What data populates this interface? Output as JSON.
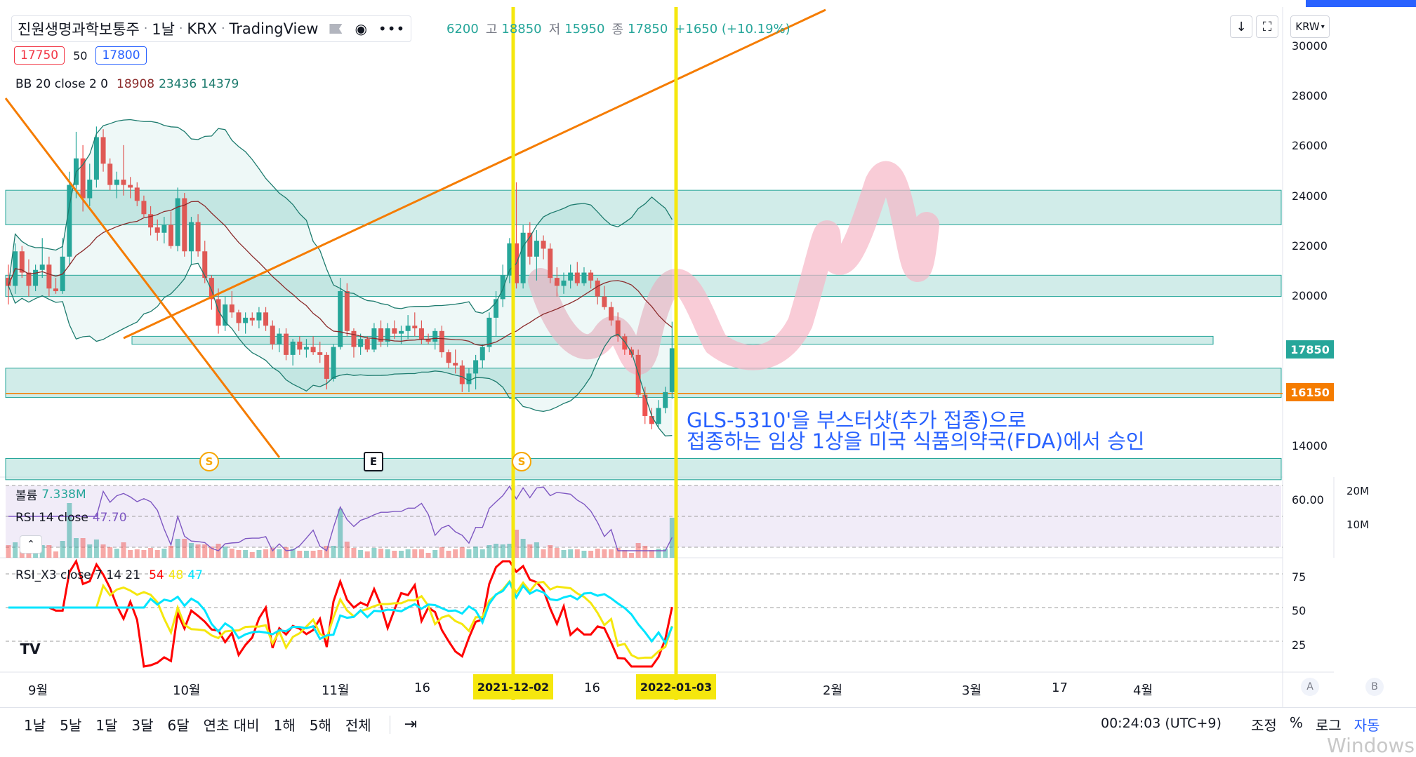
{
  "header": {
    "title": "진원생명과학보통주",
    "interval": "1날",
    "exchange": "KRX",
    "source": "TradingView",
    "ohlc_open_partial": "6200",
    "ohlc_high_label": "고",
    "ohlc_high": "18850",
    "ohlc_low_label": "저",
    "ohlc_low": "15950",
    "ohlc_close_label": "종",
    "ohlc_close": "17850",
    "change": "+1650 (+10.19%)",
    "bid": "17750",
    "spread": "50",
    "ask": "17800",
    "currency": "KRW"
  },
  "indicators": {
    "bb": {
      "label": "BB 20 close 2 0",
      "basis": "18908",
      "upper": "23436",
      "lower": "14379"
    },
    "volume": {
      "label": "볼륨",
      "value": "7.338M"
    },
    "rsi": {
      "label": "RSI 14 close",
      "value": "47.70"
    },
    "rsi_x3": {
      "label": "RSI_X3 close 7 14 21",
      "v1": "54",
      "v2": "48",
      "v3": "47"
    }
  },
  "price_axis": {
    "ticks": [
      "30000",
      "28000",
      "26000",
      "24000",
      "22000",
      "20000",
      "14000"
    ],
    "current_price": "17850",
    "line_price": "16150",
    "rsi_tick": "60.00",
    "volume_ticks": [
      "20M",
      "10M"
    ],
    "rsi_x3_ticks": [
      "75",
      "50",
      "25"
    ]
  },
  "time_axis": {
    "labels": [
      "9월",
      "10월",
      "11월",
      "16",
      "16",
      "2월",
      "3월",
      "17",
      "4월"
    ],
    "highlight_1": "2021-12-02",
    "highlight_2": "2022-01-03"
  },
  "markers": {
    "split": "S",
    "earnings": "E"
  },
  "annotation": {
    "line1": "GLS-5310'을 부스터샷(추가 접종)으로",
    "line2": "접종하는 임상 1상을 미국 식품의약국(FDA)에서 승인"
  },
  "bottom_bar": {
    "ranges": [
      "1날",
      "5날",
      "1달",
      "3달",
      "6달",
      "연초 대비",
      "1해",
      "5해",
      "전체"
    ],
    "clock": "00:24:03 (UTC+9)",
    "adjust": "조정",
    "percent": "%",
    "log": "로그",
    "auto": "자동",
    "scale_a": "A",
    "scale_b": "B"
  },
  "watermark": "Windows",
  "colors": {
    "up": "#26a69a",
    "down": "#ef5350",
    "zone_fill": "#b2dfdb",
    "trend": "#f57c00",
    "highlight": "#f5e70e",
    "annotation": "#2962ff"
  },
  "chart_data": {
    "type": "candlestick",
    "candles": [
      [
        20500,
        21000,
        19500,
        20200
      ],
      [
        20200,
        21800,
        19900,
        21500
      ],
      [
        21500,
        21700,
        20500,
        20700
      ],
      [
        20700,
        21200,
        19800,
        20200
      ],
      [
        20200,
        21000,
        20000,
        20800
      ],
      [
        20800,
        22000,
        20500,
        21000
      ],
      [
        21000,
        21300,
        19800,
        20100
      ],
      [
        20100,
        20500,
        19900,
        20000
      ],
      [
        20000,
        22000,
        19900,
        21300
      ],
      [
        21300,
        24500,
        21000,
        24000
      ],
      [
        24000,
        26000,
        23500,
        25000
      ],
      [
        25000,
        25500,
        23000,
        23500
      ],
      [
        23500,
        24800,
        23200,
        24200
      ],
      [
        24200,
        26200,
        23900,
        25800
      ],
      [
        25800,
        26100,
        24500,
        24800
      ],
      [
        24800,
        25000,
        23800,
        24000
      ],
      [
        24000,
        24500,
        23500,
        24200
      ],
      [
        24200,
        25500,
        23600,
        24000
      ],
      [
        24000,
        24300,
        23500,
        23900
      ],
      [
        23900,
        24100,
        23200,
        23400
      ],
      [
        23400,
        23600,
        22800,
        22900
      ],
      [
        22900,
        23200,
        22100,
        22400
      ],
      [
        22400,
        22700,
        21900,
        22200
      ],
      [
        22200,
        22800,
        21800,
        22500
      ],
      [
        22500,
        23000,
        21600,
        21700
      ],
      [
        21700,
        23900,
        21500,
        23500
      ],
      [
        23500,
        23700,
        21300,
        21500
      ],
      [
        21500,
        22800,
        21000,
        22600
      ],
      [
        22600,
        22900,
        21300,
        21500
      ],
      [
        21500,
        21900,
        20300,
        20500
      ],
      [
        20500,
        20600,
        19300,
        19700
      ],
      [
        19700,
        20100,
        18400,
        18700
      ],
      [
        18700,
        19800,
        18500,
        19500
      ],
      [
        19500,
        20000,
        19000,
        19200
      ],
      [
        19200,
        19300,
        18500,
        18800
      ],
      [
        18800,
        19200,
        18400,
        19000
      ],
      [
        19000,
        19200,
        18700,
        18900
      ],
      [
        18900,
        19400,
        18600,
        19200
      ],
      [
        19200,
        19400,
        18500,
        18700
      ],
      [
        18700,
        18900,
        17800,
        18000
      ],
      [
        18000,
        18600,
        17700,
        18400
      ],
      [
        18400,
        18600,
        17400,
        17600
      ],
      [
        17600,
        18200,
        17200,
        18100
      ],
      [
        18100,
        18300,
        17600,
        17800
      ],
      [
        17800,
        18200,
        17500,
        17900
      ],
      [
        17900,
        18300,
        17600,
        17700
      ],
      [
        17700,
        18100,
        17300,
        17600
      ],
      [
        17600,
        17700,
        16300,
        16700
      ],
      [
        16700,
        18000,
        16600,
        17900
      ],
      [
        17900,
        20500,
        17800,
        20000
      ],
      [
        20000,
        20300,
        18300,
        18500
      ],
      [
        18500,
        18600,
        17500,
        17900
      ],
      [
        17900,
        18400,
        17600,
        18200
      ],
      [
        18200,
        18300,
        17700,
        17800
      ],
      [
        17800,
        18800,
        17700,
        18600
      ],
      [
        18600,
        18900,
        17900,
        18100
      ],
      [
        18100,
        18800,
        17900,
        18600
      ],
      [
        18600,
        18900,
        18200,
        18400
      ],
      [
        18400,
        18700,
        18000,
        18500
      ],
      [
        18500,
        19100,
        18200,
        18700
      ],
      [
        18700,
        19200,
        18300,
        18600
      ],
      [
        18600,
        18900,
        18000,
        18200
      ],
      [
        18200,
        18400,
        18000,
        18100
      ],
      [
        18100,
        18600,
        17800,
        18500
      ],
      [
        18500,
        18700,
        17500,
        17700
      ],
      [
        17700,
        17800,
        17100,
        17300
      ],
      [
        17300,
        17800,
        16900,
        17200
      ],
      [
        17200,
        17400,
        16200,
        16500
      ],
      [
        16500,
        17100,
        16200,
        16900
      ],
      [
        16900,
        17600,
        16300,
        17400
      ],
      [
        17400,
        18000,
        17100,
        17900
      ],
      [
        17900,
        19200,
        17700,
        19000
      ],
      [
        19000,
        20000,
        18300,
        19700
      ],
      [
        19700,
        21000,
        19400,
        20600
      ],
      [
        20600,
        22000,
        20300,
        21800
      ],
      [
        21800,
        24100,
        20100,
        20300
      ],
      [
        20300,
        22500,
        20100,
        22200
      ],
      [
        22200,
        22600,
        21000,
        21300
      ],
      [
        21300,
        22300,
        20400,
        21900
      ],
      [
        21900,
        22100,
        21200,
        21600
      ],
      [
        21600,
        21800,
        20300,
        20500
      ],
      [
        20500,
        20900,
        19800,
        20200
      ],
      [
        20200,
        20700,
        19900,
        20400
      ],
      [
        20400,
        21000,
        20100,
        20700
      ],
      [
        20700,
        21100,
        20200,
        20300
      ],
      [
        20300,
        20900,
        20200,
        20700
      ],
      [
        20700,
        20800,
        20100,
        20400
      ],
      [
        20400,
        20500,
        19500,
        19800
      ],
      [
        19800,
        20200,
        19300,
        19400
      ],
      [
        19400,
        19600,
        18700,
        18900
      ],
      [
        18900,
        19200,
        18100,
        18300
      ],
      [
        18300,
        18400,
        17600,
        17800
      ],
      [
        17800,
        17900,
        17500,
        17600
      ],
      [
        17600,
        17800,
        16000,
        16100
      ],
      [
        16100,
        16400,
        15000,
        15300
      ],
      [
        15300,
        15600,
        14800,
        15000
      ],
      [
        15000,
        15900,
        14900,
        15600
      ],
      [
        15600,
        16400,
        15400,
        16200
      ],
      [
        16200,
        18850,
        15950,
        17850
      ]
    ],
    "volume_max": "20M",
    "rsi_range": [
      0,
      100
    ],
    "price_range": [
      13000,
      30700
    ]
  }
}
